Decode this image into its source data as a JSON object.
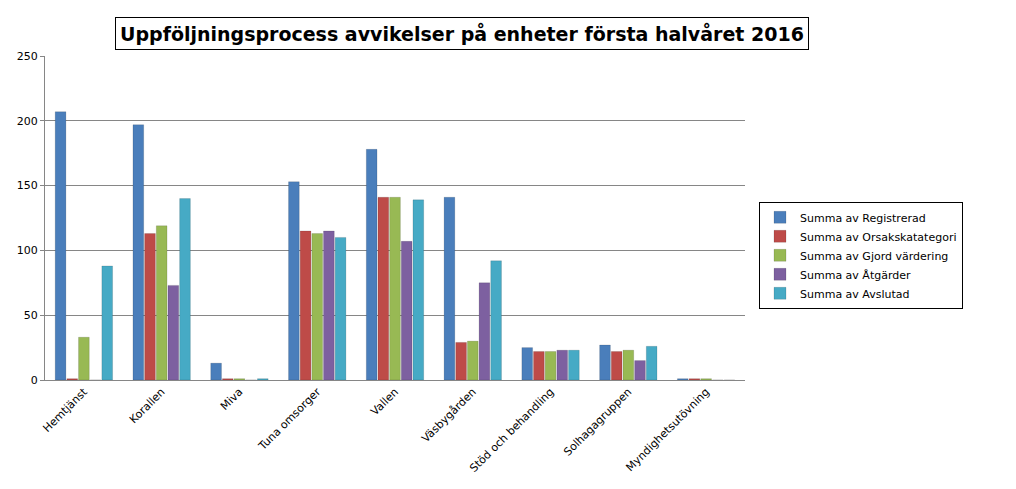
{
  "chart_data": {
    "type": "bar",
    "title": "Uppföljningsprocess avvikelser på enheter första halvåret 2016",
    "categories": [
      "Hemtjänst",
      "Korallen",
      "Miva",
      "Tuna omsorger",
      "Vallen",
      "Väsbygården",
      "Stöd och behandling",
      "Solhagagruppen",
      "Myndighetsutövning"
    ],
    "series": [
      {
        "name": "Summa av Registrerad",
        "color": "#4a7ebb",
        "values": [
          207,
          197,
          13,
          153,
          178,
          141,
          25,
          27,
          1
        ]
      },
      {
        "name": "Summa av Orsakskatategori",
        "color": "#be4b48",
        "values": [
          1,
          113,
          1,
          115,
          141,
          29,
          22,
          22,
          1
        ]
      },
      {
        "name": "Summa av Gjord värdering",
        "color": "#98b954",
        "values": [
          33,
          119,
          1,
          113,
          141,
          30,
          22,
          23,
          1
        ]
      },
      {
        "name": "Summa av Åtgärder",
        "color": "#7d60a0",
        "values": [
          0,
          73,
          0,
          115,
          107,
          75,
          23,
          15,
          0
        ]
      },
      {
        "name": "Summa av Avslutad",
        "color": "#46aac5",
        "values": [
          88,
          140,
          1,
          110,
          139,
          92,
          23,
          26,
          0
        ]
      }
    ],
    "ylim": [
      0,
      250
    ],
    "yticks": [
      0,
      50,
      100,
      150,
      200,
      250
    ],
    "grid": true,
    "legend": "right"
  }
}
